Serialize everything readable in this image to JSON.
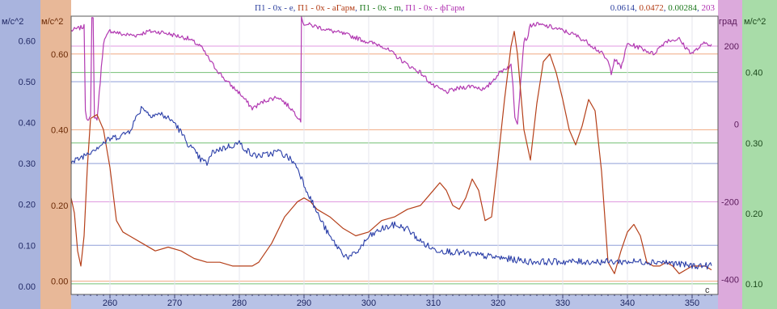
{
  "chart_data": {
    "type": "line",
    "title_parts": [
      {
        "text": "П1 - 0x - e",
        "color": "#2b3f9e"
      },
      {
        "text": ", ",
        "color": "#2b3f9e"
      },
      {
        "text": "П1 - 0x - аГарм",
        "color": "#b23a12"
      },
      {
        "text": ", ",
        "color": "#2b3f9e"
      },
      {
        "text": "П1 - 0x - m",
        "color": "#1f7a1f"
      },
      {
        "text": ", ",
        "color": "#2b3f9e"
      },
      {
        "text": "П1 - 0x - фГарм",
        "color": "#b02fb0"
      }
    ],
    "readout_parts": [
      {
        "text": "0.0614",
        "color": "#2b3f9e"
      },
      {
        "text": ", ",
        "color": "#2b3f9e"
      },
      {
        "text": "0.0472",
        "color": "#b23a12"
      },
      {
        "text": ", ",
        "color": "#2b3f9e"
      },
      {
        "text": "0.00284",
        "color": "#1f7a1f"
      },
      {
        "text": ", ",
        "color": "#2b3f9e"
      },
      {
        "text": "203",
        "color": "#b02fb0"
      }
    ],
    "xlabel": "с",
    "x_range": [
      254,
      354
    ],
    "x_ticks": [
      260,
      270,
      280,
      290,
      300,
      310,
      320,
      330,
      340,
      350
    ],
    "axes": [
      {
        "id": "blue",
        "unit": "м/с^2",
        "band_color": "#a9b4de",
        "text_color": "#222a66",
        "range": [
          -0.02,
          0.66
        ],
        "ticks": [
          0.0,
          0.1,
          0.2,
          0.3,
          0.4,
          0.5,
          0.6
        ],
        "tick_labels": [
          "0.00",
          "0.10",
          "0.20",
          "0.30",
          "0.40",
          "0.50",
          "0.60"
        ],
        "line_color": "#9aa8de"
      },
      {
        "id": "orange",
        "unit": "м/с^2",
        "band_color": "#e8b898",
        "text_color": "#6b2a06",
        "range": [
          -0.035,
          0.7
        ],
        "ticks": [
          0.0,
          0.2,
          0.4,
          0.6
        ],
        "tick_labels": [
          "0.00",
          "0.20",
          "0.40",
          "0.60"
        ],
        "line_color": "#f0b79a"
      },
      {
        "id": "violet",
        "unit": "град",
        "band_color": "#dcaadc",
        "text_color": "#5a1a5a",
        "range": [
          -438,
          277
        ],
        "ticks": [
          -400,
          -200,
          0,
          200
        ],
        "tick_labels": [
          "-400",
          "-200",
          "0",
          "200"
        ],
        "line_color": "#e4a8e4"
      },
      {
        "id": "green",
        "unit": "м/с^2",
        "band_color": "#a8dca8",
        "text_color": "#1d4a1d",
        "range": [
          0.085,
          0.48
        ],
        "ticks": [
          0.1,
          0.2,
          0.3,
          0.4
        ],
        "tick_labels": [
          "0.10",
          "0.20",
          "0.30",
          "0.40"
        ],
        "line_color": "#9ed49e"
      }
    ],
    "series": [
      {
        "name": "П1 - 0x - e",
        "axis": "blue",
        "color": "#2a3ea8",
        "noisy": true,
        "x": [
          254,
          256,
          258,
          260,
          262,
          263,
          264,
          265,
          266,
          268,
          270,
          272,
          274,
          275,
          276,
          278,
          280,
          282,
          284,
          286,
          288,
          289,
          290,
          292,
          294,
          296,
          297,
          298,
          300,
          302,
          304,
          306,
          308,
          310,
          315,
          320,
          325,
          330,
          335,
          340,
          345,
          350,
          353
        ],
        "y": [
          0.3,
          0.32,
          0.34,
          0.36,
          0.37,
          0.38,
          0.41,
          0.44,
          0.42,
          0.42,
          0.4,
          0.35,
          0.31,
          0.3,
          0.33,
          0.34,
          0.35,
          0.32,
          0.32,
          0.33,
          0.31,
          0.29,
          0.25,
          0.18,
          0.12,
          0.08,
          0.07,
          0.08,
          0.12,
          0.14,
          0.15,
          0.14,
          0.11,
          0.09,
          0.08,
          0.07,
          0.06,
          0.06,
          0.06,
          0.06,
          0.06,
          0.05,
          0.05
        ]
      },
      {
        "name": "П1 - 0x - аГарм",
        "axis": "orange",
        "color": "#b5401a",
        "noisy": false,
        "x": [
          254,
          254.5,
          255,
          255.5,
          256,
          256.5,
          257,
          258,
          259,
          260,
          261,
          262,
          263,
          265,
          267,
          269,
          271,
          273,
          275,
          277,
          279,
          281,
          282,
          283,
          285,
          287,
          289,
          290,
          291,
          292,
          294,
          296,
          298,
          300,
          302,
          304,
          306,
          308,
          310,
          311,
          312,
          313,
          314,
          315,
          316,
          317,
          318,
          319,
          320,
          321,
          322,
          322.5,
          323,
          324,
          325,
          326,
          327,
          328,
          329,
          330,
          331,
          332,
          333,
          334,
          335,
          336,
          337,
          338,
          339,
          340,
          341,
          342,
          343,
          344,
          345,
          346,
          347,
          348,
          349,
          350,
          351,
          352,
          353
        ],
        "y": [
          0.22,
          0.18,
          0.08,
          0.04,
          0.12,
          0.3,
          0.43,
          0.44,
          0.4,
          0.3,
          0.16,
          0.13,
          0.12,
          0.1,
          0.08,
          0.09,
          0.08,
          0.06,
          0.05,
          0.05,
          0.04,
          0.04,
          0.04,
          0.05,
          0.1,
          0.17,
          0.21,
          0.22,
          0.21,
          0.19,
          0.17,
          0.14,
          0.12,
          0.13,
          0.16,
          0.17,
          0.19,
          0.2,
          0.24,
          0.26,
          0.24,
          0.2,
          0.19,
          0.22,
          0.27,
          0.24,
          0.16,
          0.17,
          0.32,
          0.48,
          0.62,
          0.66,
          0.6,
          0.4,
          0.32,
          0.47,
          0.58,
          0.6,
          0.55,
          0.48,
          0.4,
          0.36,
          0.41,
          0.48,
          0.45,
          0.29,
          0.05,
          0.02,
          0.08,
          0.13,
          0.15,
          0.12,
          0.05,
          0.04,
          0.04,
          0.05,
          0.04,
          0.02,
          0.03,
          0.04,
          0.04,
          0.04,
          0.03
        ]
      },
      {
        "name": "П1 - 0x - фГарм",
        "axis": "violet",
        "color": "#b23ab2",
        "noisy": true,
        "x": [
          254,
          255,
          256,
          256.2,
          256.4,
          257,
          257.2,
          257.4,
          257.6,
          258,
          259,
          260,
          262,
          264,
          266,
          268,
          270,
          272,
          274,
          276,
          278,
          280,
          282,
          284,
          286,
          288,
          289.5,
          289.6,
          290,
          292,
          294,
          296,
          298,
          300,
          302,
          304,
          306,
          308,
          310,
          312,
          314,
          316,
          318,
          320,
          321,
          322,
          322.3,
          322.6,
          323,
          324,
          324.5,
          325,
          326,
          328,
          330,
          332,
          334,
          336,
          337,
          337.5,
          338,
          339,
          340,
          342,
          344,
          346,
          348,
          349,
          350,
          352,
          353
        ],
        "y": [
          240,
          245,
          250,
          40,
          15,
          15,
          270,
          270,
          20,
          10,
          210,
          240,
          230,
          228,
          238,
          236,
          228,
          220,
          200,
          150,
          110,
          80,
          40,
          60,
          70,
          40,
          10,
          270,
          258,
          250,
          240,
          232,
          222,
          210,
          202,
          178,
          152,
          132,
          98,
          82,
          92,
          98,
          88,
          128,
          142,
          150,
          100,
          20,
          4,
          215,
          220,
          254,
          256,
          250,
          240,
          228,
          208,
          182,
          160,
          132,
          168,
          144,
          206,
          196,
          180,
          214,
          218,
          196,
          182,
          208,
          205
        ]
      }
    ],
    "h_lines": [
      {
        "axis": "blue",
        "value": 0.5,
        "color": "#8f9fd8"
      },
      {
        "axis": "blue",
        "value": 0.3,
        "color": "#8f9fd8"
      },
      {
        "axis": "blue",
        "value": 0.1,
        "color": "#8f9fd8"
      },
      {
        "axis": "green",
        "value": 0.4,
        "color": "#74c074"
      },
      {
        "axis": "green",
        "value": 0.3,
        "color": "#74c074"
      },
      {
        "axis": "green",
        "value": 0.1,
        "color": "#74c074"
      },
      {
        "axis": "orange",
        "value": 0.6,
        "color": "#f0a983"
      },
      {
        "axis": "orange",
        "value": 0.4,
        "color": "#f0a983"
      },
      {
        "axis": "orange",
        "value": 0.0,
        "color": "#f0a983"
      },
      {
        "axis": "violet",
        "value": 200,
        "color": "#e09ae0"
      },
      {
        "axis": "violet",
        "value": -200,
        "color": "#e09ae0"
      }
    ],
    "grid": true
  }
}
